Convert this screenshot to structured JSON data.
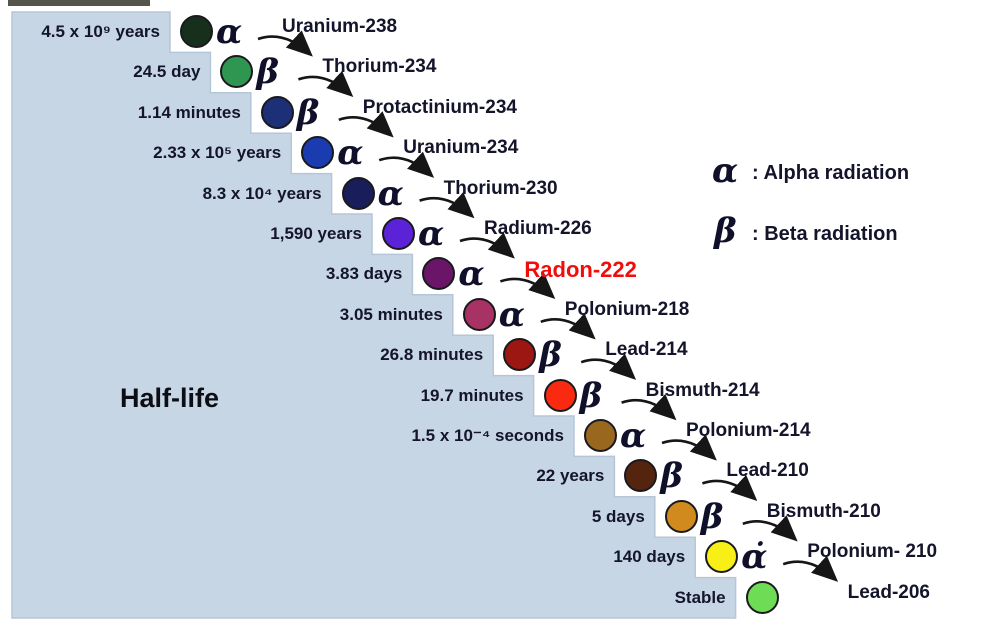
{
  "half_life_title": "Half-life",
  "legend": {
    "alpha_symbol": "α",
    "alpha_label": ": Alpha radiation",
    "beta_symbol": "β",
    "beta_label": ": Beta radiation"
  },
  "colors": {
    "stair_fill": "#c6d6e4",
    "stair_edge": "#b5c6d8",
    "arrow": "#161616",
    "text_dark": "#14142a",
    "highlight_red": "#f20d0d"
  },
  "chain": [
    {
      "half_life": "4.5 x 10⁹ years",
      "radiation": "α",
      "isotope": "Uranium-238",
      "circle_color": "#17301c",
      "highlight": false
    },
    {
      "half_life": "24.5 day",
      "radiation": "β",
      "isotope": "Thorium-234",
      "circle_color": "#2f9651",
      "highlight": false
    },
    {
      "half_life": "1.14 minutes",
      "radiation": "β",
      "isotope": "Protactinium-234",
      "circle_color": "#1d2f77",
      "highlight": false
    },
    {
      "half_life": "2.33 x 10⁵ years",
      "radiation": "α",
      "isotope": "Uranium-234",
      "circle_color": "#1a3cb0",
      "highlight": false
    },
    {
      "half_life": "8.3 x 10⁴ years",
      "radiation": "α",
      "isotope": "Thorium-230",
      "circle_color": "#191d5a",
      "highlight": false
    },
    {
      "half_life": "1,590 years",
      "radiation": "α",
      "isotope": "Radium-226",
      "circle_color": "#5a23d8",
      "highlight": false
    },
    {
      "half_life": "3.83 days",
      "radiation": "α",
      "isotope": "Radon-222",
      "circle_color": "#6a1568",
      "highlight": true
    },
    {
      "half_life": "3.05 minutes",
      "radiation": "α",
      "isotope": "Polonium-218",
      "circle_color": "#a83263",
      "highlight": false
    },
    {
      "half_life": "26.8 minutes",
      "radiation": "β",
      "isotope": "Lead-214",
      "circle_color": "#9c1711",
      "highlight": false
    },
    {
      "half_life": "19.7 minutes",
      "radiation": "β",
      "isotope": "Bismuth-214",
      "circle_color": "#fa2a10",
      "highlight": false
    },
    {
      "half_life": "1.5 x 10⁻⁴ seconds",
      "radiation": "α",
      "isotope": "Polonium-214",
      "circle_color": "#9a671e",
      "highlight": false
    },
    {
      "half_life": "22 years",
      "radiation": "β",
      "isotope": "Lead-210",
      "circle_color": "#55240f",
      "highlight": false
    },
    {
      "half_life": "5 days",
      "radiation": "β",
      "isotope": "Bismuth-210",
      "circle_color": "#d08a1e",
      "highlight": false
    },
    {
      "half_life": "140 days",
      "radiation": "α̇",
      "isotope": "Polonium- 210",
      "circle_color": "#f7ef16",
      "highlight": false
    },
    {
      "half_life": "Stable",
      "radiation": "",
      "isotope": "Lead-206",
      "circle_color": "#6edc55",
      "highlight": false
    }
  ]
}
